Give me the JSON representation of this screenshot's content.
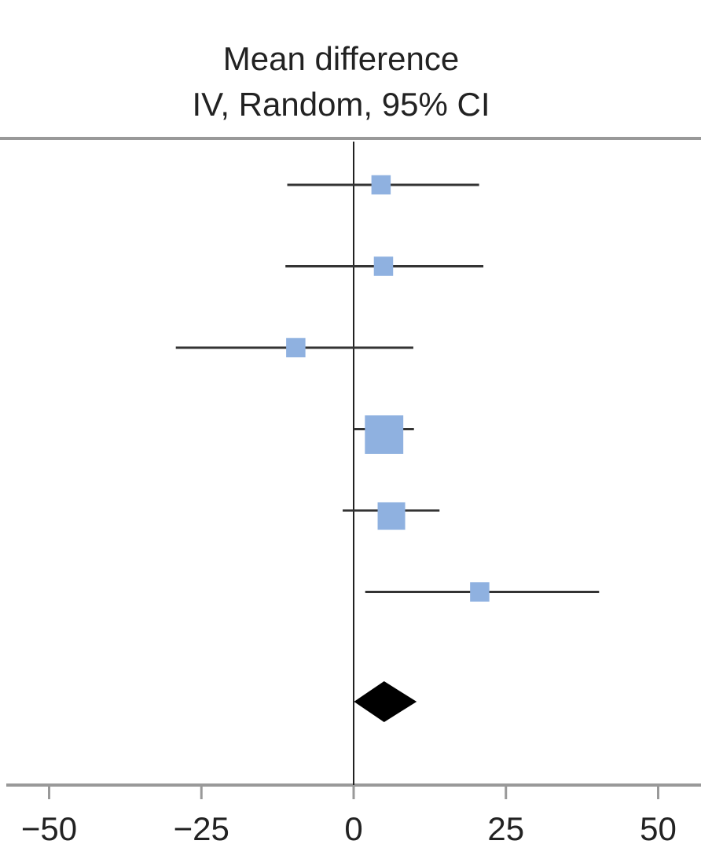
{
  "header": {
    "title_line1": "Mean difference",
    "title_line2": "IV, Random, 95% CI"
  },
  "colors": {
    "study_marker": "#8fb1e0",
    "pooled_marker": "#000000",
    "lines": "#333333",
    "axis": "#999999"
  },
  "chart_data": {
    "type": "forest",
    "title": "Mean difference IV, Random, 95% CI",
    "xlabel": "",
    "xlim": [
      -50,
      50
    ],
    "x_ticks": [
      -50,
      -25,
      0,
      25,
      50
    ],
    "x_tick_labels": [
      "−50",
      "−25",
      "0",
      "25",
      "50"
    ],
    "reference_line": 0,
    "studies": [
      {
        "estimate": 4.5,
        "lower": -10.9,
        "upper": 20.6,
        "weight": 0.05
      },
      {
        "estimate": 4.9,
        "lower": -11.2,
        "upper": 21.3,
        "weight": 0.05
      },
      {
        "estimate": -9.5,
        "lower": -29.2,
        "upper": 9.8,
        "weight": 0.05
      },
      {
        "estimate": 5.0,
        "lower": 0.0,
        "upper": 9.9,
        "weight": 0.55
      },
      {
        "estimate": 6.2,
        "lower": -1.8,
        "upper": 14.1,
        "weight": 0.2
      },
      {
        "estimate": 20.7,
        "lower": 1.9,
        "upper": 40.3,
        "weight": 0.05
      }
    ],
    "pooled": {
      "estimate": 5.0,
      "lower": 1.6,
      "upper": 8.8
    }
  }
}
